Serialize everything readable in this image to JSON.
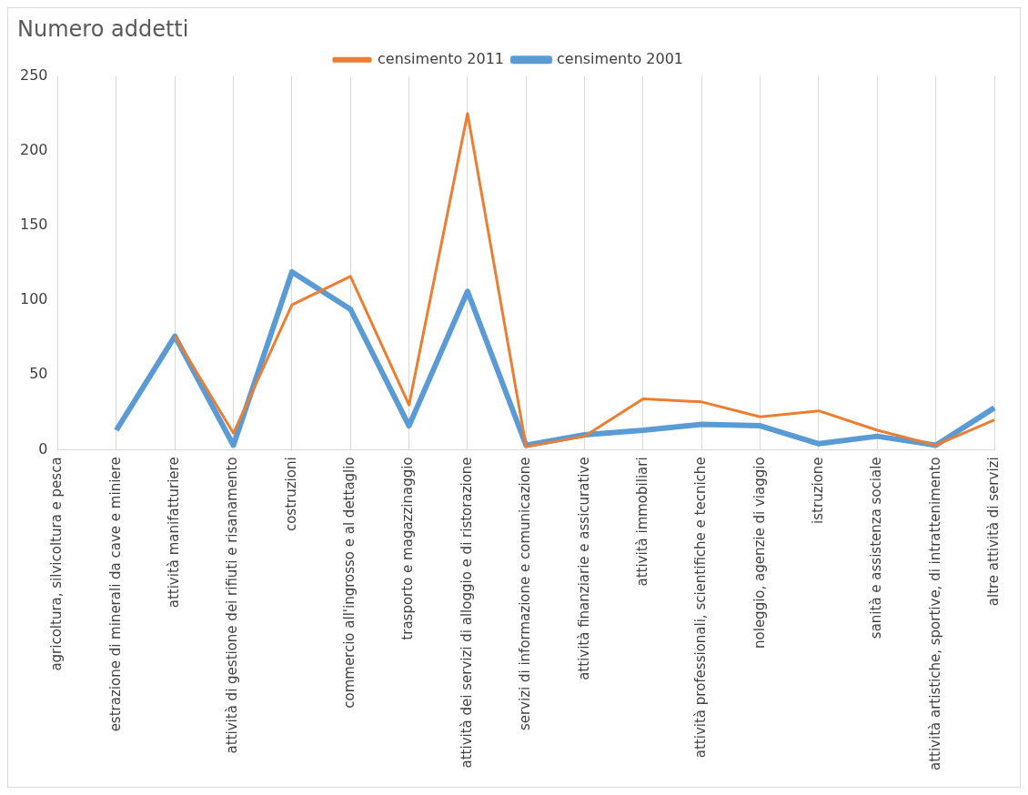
{
  "chart_data": {
    "type": "line",
    "title": "Numero addetti",
    "categories": [
      "agricoltura, silvicoltura e pesca",
      "estrazione di minerali da cave e miniere",
      "attività manifatturiere",
      "attività di gestione dei rifiuti e risanamento",
      "costruzioni",
      "commercio all'ingrosso e al dettaglio",
      "trasporto e magazzinaggio",
      "attività dei servizi di alloggio e di ristorazione",
      "servizi di informazione e comunicazione",
      "attività finanziarie e assicurative",
      "attività immobiliari",
      "attività professionali, scientifiche e tecniche",
      "noleggio, agenzie di viaggio",
      "istruzione",
      "sanità e assistenza sociale",
      "attività artistiche, sportive, di intrattenimento",
      "altre attività di servizi"
    ],
    "series": [
      {
        "name": "censimento 2001",
        "color": "#5b9bd5",
        "values": [
          null,
          13,
          76,
          3,
          119,
          94,
          16,
          106,
          3,
          10,
          13,
          17,
          16,
          4,
          9,
          3,
          28
        ]
      },
      {
        "name": "censimento 2011",
        "color": "#ed7d31",
        "values": [
          null,
          null,
          76,
          11,
          97,
          116,
          30,
          225,
          2,
          9,
          34,
          32,
          22,
          26,
          13,
          3,
          20
        ]
      }
    ],
    "ylim": [
      0,
      250
    ],
    "yticks": [
      0,
      50,
      100,
      150,
      200,
      250
    ],
    "grid": "x",
    "legend": "top",
    "marker": "none"
  }
}
